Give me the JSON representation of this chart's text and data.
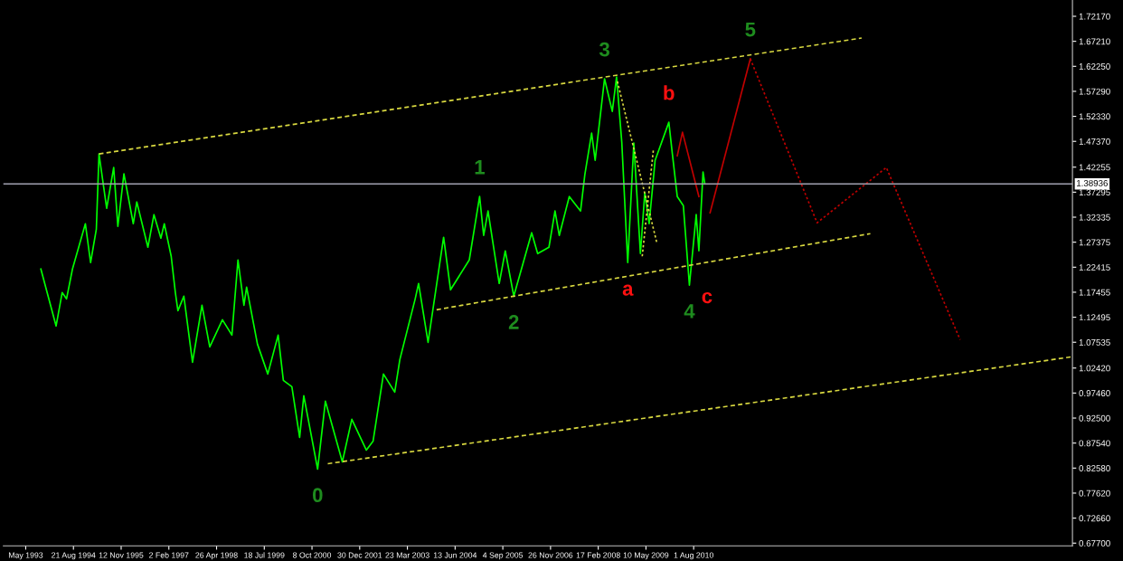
{
  "chart_data": {
    "type": "line",
    "xlim": [
      "1992-11-01",
      "2020-04-27"
    ],
    "ylim": [
      0.6716,
      1.754
    ],
    "xticks": [
      {
        "value": "1993-05-30",
        "label": "May 1993"
      },
      {
        "value": "1994-08-21",
        "label": "21 Aug 1994"
      },
      {
        "value": "1995-11-12",
        "label": "12 Nov 1995"
      },
      {
        "value": "1997-02-02",
        "label": "2 Feb 1997"
      },
      {
        "value": "1998-04-26",
        "label": "26 Apr 1998"
      },
      {
        "value": "1999-07-18",
        "label": "18 Jul 1999"
      },
      {
        "value": "2000-10-08",
        "label": "8 Oct 2000"
      },
      {
        "value": "2001-12-30",
        "label": "30 Dec 2001"
      },
      {
        "value": "2003-03-23",
        "label": "23 Mar 2003"
      },
      {
        "value": "2004-06-13",
        "label": "13 Jun 2004"
      },
      {
        "value": "2005-09-04",
        "label": "4 Sep 2005"
      },
      {
        "value": "2006-11-26",
        "label": "26 Nov 2006"
      },
      {
        "value": "2008-02-17",
        "label": "17 Feb 2008"
      },
      {
        "value": "2009-05-10",
        "label": "10 May 2009"
      },
      {
        "value": "2010-08-01",
        "label": "1 Aug 2010"
      }
    ],
    "yticks": [
      {
        "value": 1.7217,
        "label": "1.72170"
      },
      {
        "value": 1.6721,
        "label": "1.67210"
      },
      {
        "value": 1.6225,
        "label": "1.62250"
      },
      {
        "value": 1.5729,
        "label": "1.57290"
      },
      {
        "value": 1.5233,
        "label": "1.52330"
      },
      {
        "value": 1.4737,
        "label": "1.47370"
      },
      {
        "value": 1.42255,
        "label": "1.42255"
      },
      {
        "value": 1.37295,
        "label": "1.37295"
      },
      {
        "value": 1.32335,
        "label": "1.32335"
      },
      {
        "value": 1.27375,
        "label": "1.27375"
      },
      {
        "value": 1.22415,
        "label": "1.22415"
      },
      {
        "value": 1.17455,
        "label": "1.17455"
      },
      {
        "value": 1.12495,
        "label": "1.12495"
      },
      {
        "value": 1.07535,
        "label": "1.07535"
      },
      {
        "value": 1.0242,
        "label": "1.02420"
      },
      {
        "value": 0.9746,
        "label": "0.97460"
      },
      {
        "value": 0.925,
        "label": "0.92500"
      },
      {
        "value": 0.8754,
        "label": "0.87540"
      },
      {
        "value": 0.8258,
        "label": "0.82580"
      },
      {
        "value": 0.7762,
        "label": "0.77620"
      },
      {
        "value": 0.7266,
        "label": "0.72660"
      },
      {
        "value": 0.677,
        "label": "0.67700"
      }
    ],
    "grid": false,
    "legend": false,
    "series": [
      {
        "color": "#00ff00",
        "line_style": "solid",
        "x": [
          "1993-10-19",
          "1994-03-11",
          "1994-05-07",
          "1994-06-17",
          "1994-08-12",
          "1994-12-11",
          "1995-01-29",
          "1995-03-24",
          "1995-04-18",
          "1995-06-29",
          "1995-09-03",
          "1995-10-12",
          "1995-12-08",
          "1996-03-05",
          "1996-04-07",
          "1996-07-20",
          "1996-09-15",
          "1996-11-19",
          "1996-12-21",
          "1997-02-24",
          "1997-04-04",
          "1997-04-28",
          "1997-06-23",
          "1997-09-12",
          "1997-12-10",
          "1998-02-21",
          "1998-06-20",
          "1998-09-17",
          "1998-11-13",
          "1999-01-08",
          "1999-02-02",
          "1999-05-15",
          "1999-08-20",
          "1999-11-25",
          "2000-01-13",
          "2000-04-02",
          "2000-06-14",
          "2000-07-23",
          "2000-11-30",
          "2001-02-11",
          "2001-07-20",
          "2001-10-17",
          "2002-03-02",
          "2002-05-05",
          "2002-08-10",
          "2002-11-24",
          "2003-01-11",
          "2003-06-04",
          "2003-07-06",
          "2003-10-03",
          "2004-02-26",
          "2004-05-01",
          "2004-10-24",
          "2005-01-29",
          "2005-03-08",
          "2005-04-18",
          "2005-08-01",
          "2005-09-27",
          "2005-12-16",
          "2006-06-02",
          "2006-07-28",
          "2006-11-11",
          "2007-01-07",
          "2007-02-16",
          "2007-05-21",
          "2007-09-04",
          "2007-10-14",
          "2007-12-17",
          "2008-01-19",
          "2008-04-16",
          "2008-06-28",
          "2008-08-07",
          "2008-09-25",
          "2008-11-20",
          "2009-01-16",
          "2009-03-19",
          "2009-04-29",
          "2009-06-09",
          "2009-08-04",
          "2009-12-11",
          "2010-01-13",
          "2010-02-28",
          "2010-04-26",
          "2010-06-22",
          "2010-08-25",
          "2010-09-19",
          "2010-10-28",
          "2010-11-14"
        ],
        "values": [
          1.2206,
          1.1075,
          1.1739,
          1.1613,
          1.2206,
          1.3104,
          1.2332,
          1.2996,
          1.4487,
          1.3409,
          1.4218,
          1.305,
          1.4092,
          1.3104,
          1.3535,
          1.2637,
          1.3284,
          1.2817,
          1.3104,
          1.2458,
          1.1739,
          1.138,
          1.1667,
          1.0356,
          1.1488,
          1.0662,
          1.12,
          1.0895,
          1.2386,
          1.1488,
          1.1847,
          1.0715,
          1.0123,
          1.0895,
          0.9997,
          0.9871,
          0.8866,
          0.9692,
          0.8237,
          0.9584,
          0.8381,
          0.9225,
          0.8614,
          0.8794,
          1.0123,
          0.9764,
          1.041,
          1.1613,
          1.1919,
          1.0751,
          1.2835,
          1.1793,
          1.2386,
          1.3643,
          1.2871,
          1.3356,
          1.1919,
          1.2565,
          1.1667,
          1.2925,
          1.2511,
          1.2637,
          1.3356,
          1.2871,
          1.3643,
          1.3356,
          1.4074,
          1.49,
          1.4361,
          1.5978,
          1.5331,
          1.6014,
          1.4721,
          1.2332,
          1.4703,
          1.2511,
          1.3715,
          1.3104,
          1.4361,
          1.5116,
          1.4487,
          1.3643,
          1.3463,
          1.1883,
          1.3284,
          1.2565,
          1.4128,
          1.3894
        ]
      },
      {
        "type": "line",
        "color": "#c00000",
        "line_style": "solid",
        "x": [
          "2010-02-28",
          "2010-04-18",
          "2010-09-19"
        ],
        "values": [
          1.4451,
          1.4918,
          1.3643
        ]
      },
      {
        "type": "line",
        "color": "#c00000",
        "line_style": "solid",
        "x": [
          "2011-01-02",
          "2012-01-15"
        ],
        "values": [
          1.332,
          1.6373
        ]
      },
      {
        "type": "line",
        "color": "#c00000",
        "line_style": "dotted",
        "x": [
          "2012-01-15",
          "2013-10-03",
          "2015-07-15",
          "2017-06-07"
        ],
        "values": [
          1.6373,
          1.3122,
          1.4218,
          1.0805
        ]
      },
      {
        "type": "line",
        "color": "#d8d840",
        "line_style": "dashed",
        "x": [
          "1995-04-18",
          "2014-11-25"
        ],
        "values": [
          1.4487,
          1.6786
        ]
      },
      {
        "type": "line",
        "color": "#d8d840",
        "line_style": "dashed",
        "x": [
          "2003-12-22",
          "2015-02-15"
        ],
        "values": [
          1.1398,
          1.2907
        ]
      },
      {
        "type": "line",
        "color": "#d8d840",
        "line_style": "dashed",
        "x": [
          "2001-03-05",
          "2020-04-20"
        ],
        "values": [
          0.8345,
          1.0464
        ]
      },
      {
        "type": "line",
        "color": "#d8d840",
        "line_style": "dotted",
        "x": [
          "2008-08-15",
          "2009-08-20"
        ],
        "values": [
          1.5924,
          1.2727
        ]
      },
      {
        "type": "line",
        "color": "#d8d840",
        "line_style": "dotted",
        "x": [
          "2009-04-05",
          "2009-07-19"
        ],
        "values": [
          1.2458,
          1.4577
        ]
      }
    ],
    "ref_lines": [
      {
        "axis": "y",
        "value": 1.38936,
        "label": "1.38936",
        "color": "#a0a0b0"
      }
    ],
    "annotations": [
      {
        "text": "0",
        "x": "2000-11-30",
        "y": 0.8237
      },
      {
        "text": "1",
        "x": "2005-01-29",
        "y": 1.3643
      },
      {
        "text": "2",
        "x": "2005-12-16",
        "y": 1.1667
      },
      {
        "text": "3",
        "x": "2008-04-16",
        "y": 1.5978
      },
      {
        "text": "4",
        "x": "2010-06-22",
        "y": 1.1883
      },
      {
        "text": "5",
        "x": "2012-01-15",
        "y": 1.6373
      },
      {
        "text": "a",
        "x": "2008-11-20",
        "y": 1.2332
      },
      {
        "text": "b",
        "x": "2009-12-11",
        "y": 1.5116
      },
      {
        "text": "c",
        "x": "2010-06-22",
        "y": 1.1883
      }
    ]
  }
}
